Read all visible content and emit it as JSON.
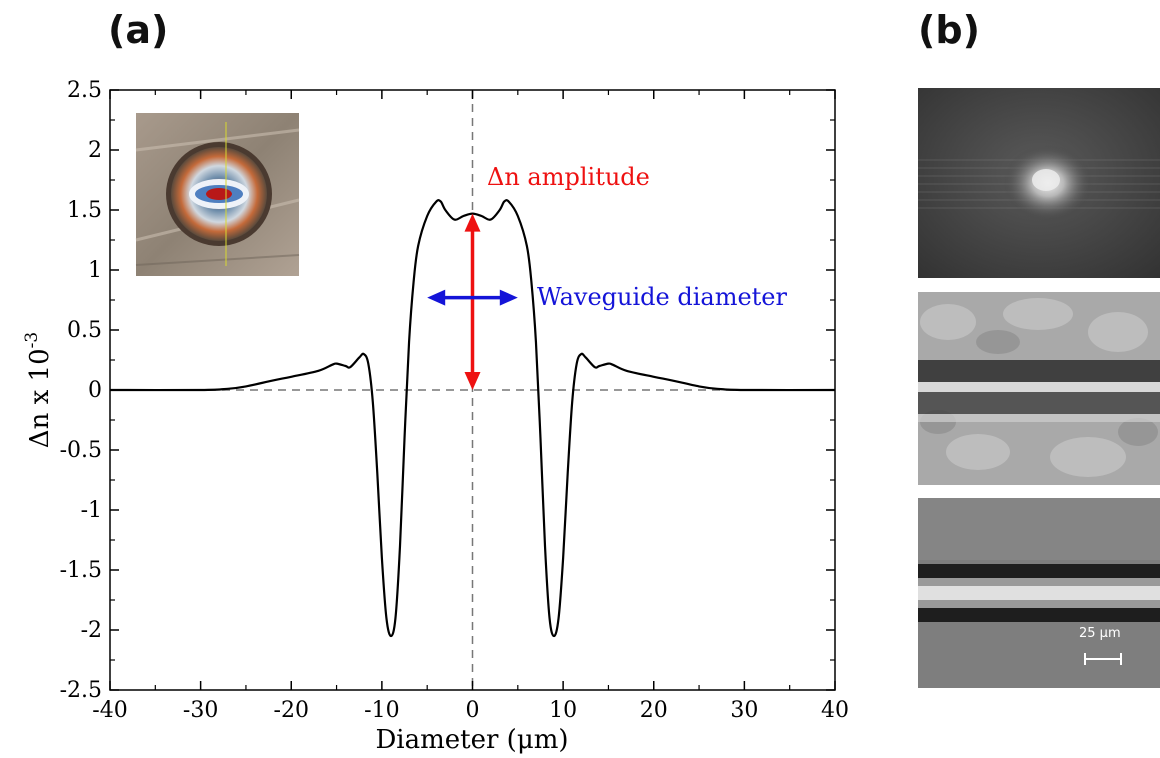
{
  "panels": {
    "a_label": "(a)",
    "b_label": "(b)"
  },
  "chart_data": {
    "type": "line",
    "title": "",
    "xlabel": "Diameter (μm)",
    "ylabel_main": "Δn x 10",
    "ylabel_exponent": "-3",
    "xlim": [
      -40,
      40
    ],
    "ylim": [
      -2.5,
      2.5
    ],
    "x_ticks": [
      -40,
      -30,
      -20,
      -10,
      0,
      10,
      20,
      30,
      40
    ],
    "x_tick_labels": [
      "-40",
      "-30",
      "-20",
      "-10",
      "0",
      "10",
      "20",
      "30",
      "40"
    ],
    "y_ticks": [
      -2.5,
      -2,
      -1.5,
      -1,
      -0.5,
      0,
      0.5,
      1,
      1.5,
      2,
      2.5
    ],
    "y_tick_labels": [
      "-2.5",
      "-2",
      "-1.5",
      "-1",
      "-0.5",
      "0",
      "0.5",
      "1",
      "1.5",
      "2",
      "2.5"
    ],
    "grid": false,
    "reference_lines": {
      "horizontal_y": 0,
      "vertical_x": 0
    },
    "series": [
      {
        "color": "#000000",
        "points": [
          [
            -40,
            0
          ],
          [
            -30,
            0
          ],
          [
            -27,
            0.01
          ],
          [
            -25,
            0.03
          ],
          [
            -22,
            0.08
          ],
          [
            -20,
            0.11
          ],
          [
            -17,
            0.16
          ],
          [
            -15.5,
            0.21
          ],
          [
            -15,
            0.22
          ],
          [
            -14,
            0.2
          ],
          [
            -13.5,
            0.19
          ],
          [
            -12.5,
            0.27
          ],
          [
            -12,
            0.3
          ],
          [
            -11.5,
            0.22
          ],
          [
            -11,
            -0.1
          ],
          [
            -10.5,
            -0.7
          ],
          [
            -10,
            -1.4
          ],
          [
            -9.5,
            -1.9
          ],
          [
            -9,
            -2.05
          ],
          [
            -8.5,
            -1.9
          ],
          [
            -8,
            -1.3
          ],
          [
            -7.5,
            -0.4
          ],
          [
            -7,
            0.4
          ],
          [
            -6.5,
            0.9
          ],
          [
            -6,
            1.2
          ],
          [
            -5,
            1.45
          ],
          [
            -4,
            1.57
          ],
          [
            -3.5,
            1.57
          ],
          [
            -3,
            1.5
          ],
          [
            -2,
            1.42
          ],
          [
            -1,
            1.45
          ],
          [
            0,
            1.47
          ],
          [
            1,
            1.45
          ],
          [
            2,
            1.42
          ],
          [
            3,
            1.5
          ],
          [
            3.5,
            1.57
          ],
          [
            4,
            1.57
          ],
          [
            5,
            1.45
          ],
          [
            6,
            1.2
          ],
          [
            6.5,
            0.9
          ],
          [
            7,
            0.4
          ],
          [
            7.5,
            -0.4
          ],
          [
            8,
            -1.3
          ],
          [
            8.5,
            -1.9
          ],
          [
            9,
            -2.05
          ],
          [
            9.5,
            -1.9
          ],
          [
            10,
            -1.4
          ],
          [
            10.5,
            -0.7
          ],
          [
            11,
            -0.1
          ],
          [
            11.5,
            0.22
          ],
          [
            12,
            0.3
          ],
          [
            12.5,
            0.27
          ],
          [
            13.5,
            0.19
          ],
          [
            14,
            0.2
          ],
          [
            15,
            0.22
          ],
          [
            15.5,
            0.21
          ],
          [
            17,
            0.16
          ],
          [
            20,
            0.11
          ],
          [
            22,
            0.08
          ],
          [
            25,
            0.03
          ],
          [
            27,
            0.01
          ],
          [
            30,
            0
          ],
          [
            40,
            0
          ]
        ]
      }
    ],
    "annotations": [
      {
        "text": "Δn amplitude",
        "color": "#ee1111",
        "arrow": {
          "x": 0,
          "from_y": 0,
          "to_y": 1.47,
          "double": true
        }
      },
      {
        "text": "Waveguide diameter",
        "color": "#1414d8",
        "arrow": {
          "y": 0.77,
          "from_x": -5,
          "to_x": 5,
          "double": true
        }
      }
    ]
  },
  "images": {
    "inset": "waveguide cross-section micrograph",
    "panel_b_top": "near-field mode intensity image",
    "panel_b_mid": "waveguide phase image",
    "panel_b_bottom": "waveguide top-view image",
    "scale_bar_label": "25 µm"
  }
}
